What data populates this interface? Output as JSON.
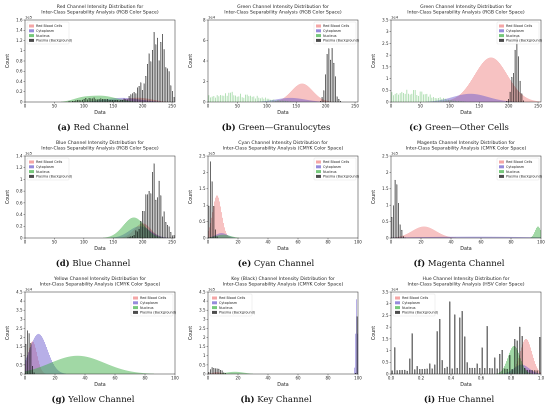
{
  "chart_data": [
    {
      "type": "bar",
      "title": "Red Channel Intensity Distribution for\nInter-Class Separability Analysis (RGB Color Space)",
      "caption_label": "(a)",
      "caption_text": "Red Channel",
      "xlabel": "Data",
      "ylabel": "Count",
      "xlim": [
        0,
        255
      ],
      "ylim": [
        0,
        1.6
      ],
      "y_exponent": "1e5",
      "xticks": [
        0,
        50,
        100,
        150,
        200,
        250
      ],
      "yticks": [
        0,
        0.2,
        0.4,
        0.6,
        0.8,
        1.0,
        1.2,
        1.4,
        1.6
      ],
      "legend": {
        "position": "top-left",
        "entries": [
          "Red Blood Cells",
          "Cytoplasm",
          "Nucleus",
          "Plasma (Background)"
        ]
      },
      "series": [
        {
          "name": "Red Blood Cells",
          "color": "#f08080",
          "style": "dense",
          "peaks": [
            {
              "center": 180,
              "width": 22,
              "height": 0.06
            },
            {
              "center": 205,
              "width": 18,
              "height": 0.04
            }
          ]
        },
        {
          "name": "Cytoplasm",
          "color": "#6a5acd",
          "style": "dense",
          "peaks": [
            {
              "center": 165,
              "width": 30,
              "height": 0.08
            }
          ]
        },
        {
          "name": "Nucleus",
          "color": "#3cb043",
          "style": "dense",
          "peaks": [
            {
              "center": 130,
              "width": 25,
              "height": 0.12
            },
            {
              "center": 95,
              "width": 15,
              "height": 0.05
            }
          ]
        },
        {
          "name": "Plasma (Background)",
          "color": "#000000",
          "style": "sparse",
          "peaks": [
            {
              "center": 228,
              "width": 12,
              "height": 1.45
            },
            {
              "center": 210,
              "width": 20,
              "height": 0.45
            },
            {
              "center": 120,
              "width": 22,
              "height": 0.1
            }
          ]
        }
      ]
    },
    {
      "type": "bar",
      "title": "Green Channel Intensity Distribution for\nInter-Class Separability Analysis (RGB Color Space)",
      "caption_label": "(b)",
      "caption_text": "Green—Granulocytes",
      "xlabel": "Data",
      "ylabel": "Count",
      "xlim": [
        0,
        255
      ],
      "ylim": [
        0,
        8
      ],
      "y_exponent": "1e4",
      "xticks": [
        0,
        50,
        100,
        150,
        200,
        250
      ],
      "yticks": [
        0,
        2,
        4,
        6,
        8
      ],
      "legend": {
        "position": "top-right",
        "entries": [
          "Red Blood Cells",
          "Cytoplasm",
          "Nucleus",
          "Plasma (Background)"
        ]
      },
      "series": [
        {
          "name": "Red Blood Cells",
          "color": "#f08080",
          "style": "dense",
          "peaks": [
            {
              "center": 160,
              "width": 18,
              "height": 1.8
            }
          ]
        },
        {
          "name": "Cytoplasm",
          "color": "#6a5acd",
          "style": "dense",
          "peaks": [
            {
              "center": 140,
              "width": 25,
              "height": 0.4
            }
          ]
        },
        {
          "name": "Nucleus",
          "color": "#3cb043",
          "style": "sparse",
          "peaks": [
            {
              "center": 40,
              "width": 45,
              "height": 1.0
            }
          ]
        },
        {
          "name": "Plasma (Background)",
          "color": "#000000",
          "style": "sparse",
          "peaks": [
            {
              "center": 208,
              "width": 6,
              "height": 7.2
            }
          ]
        }
      ]
    },
    {
      "type": "bar",
      "title": "Green Channel Intensity Distribution for\nInter-Class Separability Analysis (RGB Color Space)",
      "caption_label": "(c)",
      "caption_text": "Green—Other Cells",
      "xlabel": "Data",
      "ylabel": "Count",
      "xlim": [
        0,
        255
      ],
      "ylim": [
        0,
        3.5
      ],
      "y_exponent": "1e4",
      "xticks": [
        0,
        50,
        100,
        150,
        200,
        250
      ],
      "yticks": [
        0,
        0.5,
        1.0,
        1.5,
        2.0,
        2.5,
        3.0,
        3.5
      ],
      "legend": {
        "position": "top-right",
        "entries": [
          "Red Blood Cells",
          "Cytoplasm",
          "Nucleus",
          "Plasma (Background)"
        ]
      },
      "series": [
        {
          "name": "Red Blood Cells",
          "color": "#f08080",
          "style": "dense",
          "peaks": [
            {
              "center": 170,
              "width": 28,
              "height": 1.9
            }
          ]
        },
        {
          "name": "Cytoplasm",
          "color": "#6a5acd",
          "style": "dense",
          "peaks": [
            {
              "center": 135,
              "width": 30,
              "height": 0.35
            }
          ]
        },
        {
          "name": "Nucleus",
          "color": "#3cb043",
          "style": "sparse",
          "peaks": [
            {
              "center": 30,
              "width": 40,
              "height": 0.55
            }
          ]
        },
        {
          "name": "Plasma (Background)",
          "color": "#000000",
          "style": "sparse",
          "peaks": [
            {
              "center": 212,
              "width": 5,
              "height": 3.2
            }
          ]
        }
      ]
    },
    {
      "type": "bar",
      "title": "Blue Channel Intensity Distribution for\nInter-Class Separability Analysis (RGB Color Space)",
      "caption_label": "(d)",
      "caption_text": "Blue Channel",
      "xlabel": "Data",
      "ylabel": "Count",
      "xlim": [
        0,
        255
      ],
      "ylim": [
        0,
        1.4
      ],
      "y_exponent": "1e5",
      "xticks": [
        0,
        50,
        100,
        150,
        200,
        250
      ],
      "yticks": [
        0,
        0.2,
        0.4,
        0.6,
        0.8,
        1.0,
        1.2,
        1.4
      ],
      "legend": {
        "position": "top-left",
        "entries": [
          "Red Blood Cells",
          "Cytoplasm",
          "Nucleus",
          "Plasma (Background)"
        ]
      },
      "series": [
        {
          "name": "Red Blood Cells",
          "color": "#f08080",
          "style": "dense",
          "peaks": [
            {
              "center": 200,
              "width": 14,
              "height": 0.25
            }
          ]
        },
        {
          "name": "Cytoplasm",
          "color": "#6a5acd",
          "style": "dense",
          "peaks": [
            {
              "center": 195,
              "width": 18,
              "height": 0.2
            }
          ]
        },
        {
          "name": "Nucleus",
          "color": "#3cb043",
          "style": "dense",
          "peaks": [
            {
              "center": 185,
              "width": 18,
              "height": 0.35
            }
          ]
        },
        {
          "name": "Plasma (Background)",
          "color": "#000000",
          "style": "sparse",
          "peaks": [
            {
              "center": 218,
              "width": 14,
              "height": 1.3
            }
          ]
        }
      ]
    },
    {
      "type": "bar",
      "title": "Cyan Channel Intensity Distribution for\nInter-Class Separability Analysis (CMYK Color Space)",
      "caption_label": "(e)",
      "caption_text": "Cyan Channel",
      "xlabel": "Data",
      "ylabel": "Count",
      "xlim": [
        0,
        100
      ],
      "ylim": [
        0,
        2.5
      ],
      "y_exponent": "1e5",
      "xticks": [
        0,
        20,
        40,
        60,
        80,
        100
      ],
      "yticks": [
        0,
        0.5,
        1.0,
        1.5,
        2.0,
        2.5
      ],
      "legend": {
        "position": "top-right",
        "entries": [
          "Red Blood Cells",
          "Cytoplasm",
          "Nucleus",
          "Plasma (Background)"
        ]
      },
      "series": [
        {
          "name": "Red Blood Cells",
          "color": "#f08080",
          "style": "dense",
          "peaks": [
            {
              "center": 6,
              "width": 3,
              "height": 1.3
            }
          ]
        },
        {
          "name": "Cytoplasm",
          "color": "#6a5acd",
          "style": "dense",
          "peaks": [
            {
              "center": 9,
              "width": 4,
              "height": 0.15
            }
          ]
        },
        {
          "name": "Nucleus",
          "color": "#3cb043",
          "style": "dense",
          "peaks": [
            {
              "center": 10,
              "width": 5,
              "height": 0.1
            }
          ]
        },
        {
          "name": "Plasma (Background)",
          "color": "#000000",
          "style": "sparse",
          "peaks": [
            {
              "center": 2,
              "width": 1.5,
              "height": 2.4
            }
          ]
        }
      ]
    },
    {
      "type": "bar",
      "title": "Magenta Channel Intensity Distribution for\nInter-Class Separability Analysis (CMYK Color Space)",
      "caption_label": "(f)",
      "caption_text": "Magenta Channel",
      "xlabel": "Data",
      "ylabel": "Count",
      "xlim": [
        0,
        100
      ],
      "ylim": [
        0,
        2.5
      ],
      "y_exponent": "1e5",
      "xticks": [
        0,
        20,
        40,
        60,
        80,
        100
      ],
      "yticks": [
        0,
        0.5,
        1.0,
        1.5,
        2.0,
        2.5
      ],
      "legend": {
        "position": "top-right",
        "entries": [
          "Red Blood Cells",
          "Cytoplasm",
          "Nucleus",
          "Plasma (Background)"
        ]
      },
      "series": [
        {
          "name": "Red Blood Cells",
          "color": "#f08080",
          "style": "dense",
          "peaks": [
            {
              "center": 22,
              "width": 8,
              "height": 0.35
            }
          ]
        },
        {
          "name": "Cytoplasm",
          "color": "#6a5acd",
          "style": "dense",
          "peaks": [
            {
              "center": 55,
              "width": 40,
              "height": 0.04
            }
          ]
        },
        {
          "name": "Nucleus",
          "color": "#3cb043",
          "style": "dense",
          "peaks": [
            {
              "center": 98,
              "width": 2,
              "height": 0.35
            }
          ]
        },
        {
          "name": "Plasma (Background)",
          "color": "#000000",
          "style": "sparse",
          "peaks": [
            {
              "center": 3,
              "width": 2,
              "height": 2.3
            }
          ]
        }
      ]
    },
    {
      "type": "bar",
      "title": "Yellow Channel Intensity Distribution for\nInter-Class Separability Analysis (CMYK Color Space)",
      "caption_label": "(g)",
      "caption_text": "Yellow Channel",
      "xlabel": "Data",
      "ylabel": "Count",
      "xlim": [
        0,
        100
      ],
      "ylim": [
        0,
        4.5
      ],
      "y_exponent": "1e4",
      "xticks": [
        0,
        20,
        40,
        60,
        80,
        100
      ],
      "yticks": [
        0,
        0.5,
        1.0,
        1.5,
        2.0,
        2.5,
        3.0,
        3.5,
        4.0,
        4.5
      ],
      "legend": {
        "position": "top-right",
        "entries": [
          "Red Blood Cells",
          "Cytoplasm",
          "Nucleus",
          "Plasma (Background)"
        ]
      },
      "series": [
        {
          "name": "Red Blood Cells",
          "color": "#f08080",
          "style": "dense",
          "peaks": [
            {
              "center": 5,
              "width": 3,
              "height": 1.8
            }
          ]
        },
        {
          "name": "Cytoplasm",
          "color": "#6a5acd",
          "style": "dense",
          "peaks": [
            {
              "center": 9,
              "width": 6,
              "height": 2.2
            }
          ]
        },
        {
          "name": "Nucleus",
          "color": "#3cb043",
          "style": "dense",
          "peaks": [
            {
              "center": 35,
              "width": 18,
              "height": 1.0
            }
          ]
        },
        {
          "name": "Plasma (Background)",
          "color": "#000000",
          "style": "sparse",
          "peaks": [
            {
              "center": 2,
              "width": 1.5,
              "height": 4.2
            }
          ]
        }
      ]
    },
    {
      "type": "bar",
      "title": "Key (Black) Channel Intensity Distribution for\nInter-Class Separability Analysis (CMYK Color Space)",
      "caption_label": "(h)",
      "caption_text": "Key Channel",
      "xlabel": "Data",
      "ylabel": "Count",
      "xlim": [
        0,
        100
      ],
      "ylim": [
        0,
        4.5
      ],
      "y_exponent": "1e5",
      "xticks": [
        0,
        20,
        40,
        60,
        80,
        100
      ],
      "yticks": [
        0,
        0.5,
        1.0,
        1.5,
        2.0,
        2.5,
        3.0,
        3.5,
        4.0,
        4.5
      ],
      "legend": {
        "position": "top-left",
        "entries": [
          "Red Blood Cells",
          "Cytoplasm",
          "Nucleus",
          "Plasma (Background)"
        ]
      },
      "series": [
        {
          "name": "Red Blood Cells",
          "color": "#f08080",
          "style": "dense",
          "peaks": [
            {
              "center": 6,
              "width": 3,
              "height": 0.1
            }
          ]
        },
        {
          "name": "Cytoplasm",
          "color": "#6a5acd",
          "style": "dense",
          "peaks": [
            {
              "center": 99,
              "width": 0.6,
              "height": 4.1
            }
          ]
        },
        {
          "name": "Nucleus",
          "color": "#3cb043",
          "style": "dense",
          "peaks": [
            {
              "center": 18,
              "width": 6,
              "height": 0.12
            }
          ]
        },
        {
          "name": "Plasma (Background)",
          "color": "#000000",
          "style": "sparse",
          "peaks": [
            {
              "center": 5,
              "width": 3,
              "height": 0.6
            },
            {
              "center": 99.5,
              "width": 0.4,
              "height": 3.9
            }
          ]
        }
      ]
    },
    {
      "type": "bar",
      "title": "Hue Channel Intensity Distribution for\nInter-Class Separability Analysis (HSV Color Space)",
      "caption_label": "(i)",
      "caption_text": "Hue Channel",
      "xlabel": "Data",
      "ylabel": "Count",
      "xlim": [
        0.0,
        1.0
      ],
      "ylim": [
        0,
        3.5
      ],
      "y_exponent": "1e4",
      "xticks": [
        0.0,
        0.2,
        0.4,
        0.6,
        0.8,
        1.0
      ],
      "yticks": [
        0,
        0.5,
        1.0,
        1.5,
        2.0,
        2.5,
        3.0,
        3.5
      ],
      "legend": {
        "position": "top-left",
        "entries": [
          "Red Blood Cells",
          "Cytoplasm",
          "Nucleus",
          "Plasma (Background)"
        ]
      },
      "series": [
        {
          "name": "Red Blood Cells",
          "color": "#f08080",
          "style": "dense",
          "peaks": [
            {
              "center": 0.9,
              "width": 0.04,
              "height": 1.5
            }
          ]
        },
        {
          "name": "Cytoplasm",
          "color": "#6a5acd",
          "style": "dense",
          "peaks": [
            {
              "center": 0.87,
              "width": 0.05,
              "height": 0.4
            }
          ]
        },
        {
          "name": "Nucleus",
          "color": "#3cb043",
          "style": "dense",
          "peaks": [
            {
              "center": 0.82,
              "width": 0.04,
              "height": 1.2
            }
          ]
        },
        {
          "name": "Plasma (Background)",
          "color": "#000000",
          "style": "spiky",
          "peaks": [
            {
              "center": 0.5,
              "width": 0.45,
              "height": 3.2
            }
          ]
        }
      ]
    }
  ]
}
